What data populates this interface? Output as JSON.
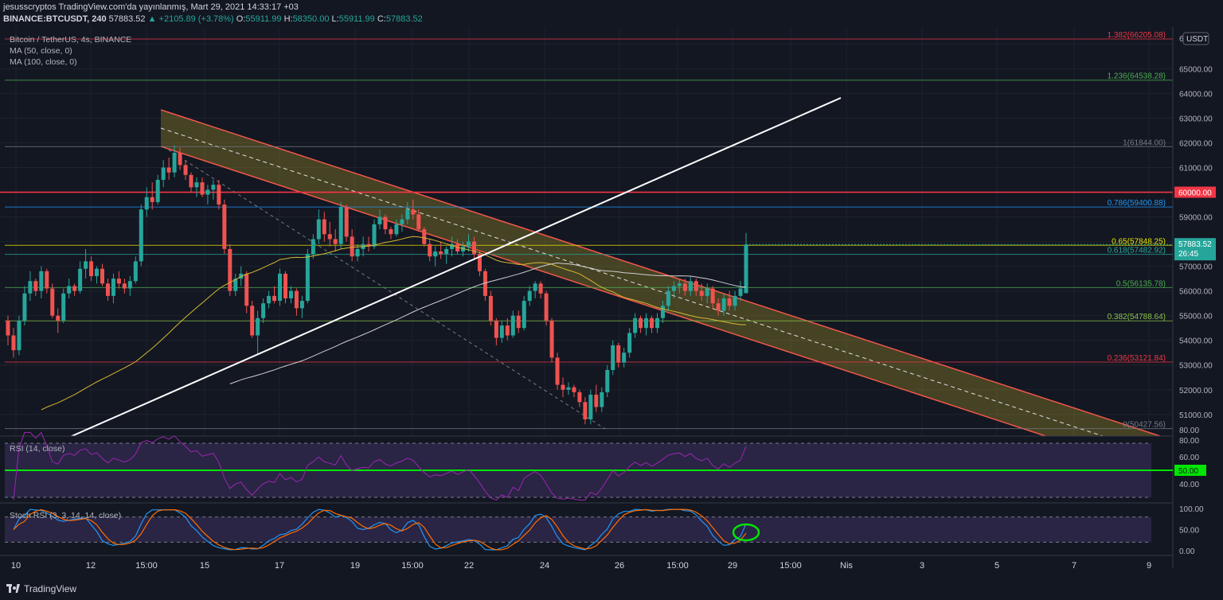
{
  "header": {
    "line1": "jesusscryptos TradingView.com'da yayınlanmış, Mart 29, 2021 14:33:17 +03",
    "symbol": "BINANCE:BTCUSDT, 240",
    "last": "57883.52",
    "change": "▲ +2105.89 (+3.78%)",
    "o_label": "O:",
    "o_val": "55911.99",
    "h_label": "H:",
    "h_val": "58350.00",
    "l_label": "L:",
    "l_val": "55911.99",
    "c_label": "C:",
    "c_val": "57883.52"
  },
  "legend": {
    "title": "Bitcoin / TetherUS, 4s, BINANCE",
    "ma50": "MA (50, close, 0)",
    "ma100": "MA (100, close, 0)",
    "rsi": "RSI (14, close)",
    "stoch": "Stoch RSI (3, 3, 14, 14, close)"
  },
  "footer": {
    "brand": "TradingView"
  },
  "chart_data": {
    "type": "candlestick",
    "currency_label": "USDT",
    "price_axis_ticks": [
      "51000.00",
      "52000.00",
      "53000.00",
      "54000.00",
      "55000.00",
      "56000.00",
      "57000.00",
      "58000.00",
      "59000.00",
      "60000.00",
      "61000.00",
      "62000.00",
      "63000.00",
      "64000.00",
      "65000.00",
      "6"
    ],
    "time_axis_ticks": [
      "10",
      "12",
      "15:00",
      "15",
      "17",
      "19",
      "15:00",
      "22",
      "24",
      "26",
      "15:00",
      "29",
      "15:00",
      "Nis",
      "3",
      "5",
      "7",
      "9"
    ],
    "last_price_tag": "57883.52",
    "countdown": "26:45",
    "fib_levels": [
      {
        "label": "1.382(66205.08)",
        "price": 66205.08,
        "color": "#f23645"
      },
      {
        "label": "1.236(64538.28)",
        "price": 64538.28,
        "color": "#4caf50"
      },
      {
        "label": "1(61844.00)",
        "price": 61844.0,
        "color": "#787b86"
      },
      {
        "label": "0.786(59400.88)",
        "price": 59400.88,
        "color": "#2196f3"
      },
      {
        "label": "0.65(57848.25)",
        "price": 57848.25,
        "color": "#e6e600"
      },
      {
        "label": "0.618(57482.92)",
        "price": 57482.92,
        "color": "#26a69a"
      },
      {
        "label": "0.5(56135.78)",
        "price": 56135.78,
        "color": "#4caf50"
      },
      {
        "label": "0.382(54788.64)",
        "price": 54788.64,
        "color": "#8bc34a"
      },
      {
        "label": "0.236(53121.84)",
        "price": 53121.84,
        "color": "#f23645"
      },
      {
        "label": "0(50427.56)",
        "price": 50427.56,
        "color": "#787b86"
      }
    ],
    "horizontal_level": {
      "label": "60000.00",
      "price": 60000
    },
    "candles": [
      [
        54800,
        55000,
        53800,
        54200
      ],
      [
        54200,
        54500,
        53300,
        53600
      ],
      [
        53600,
        55000,
        53400,
        54800
      ],
      [
        54800,
        56200,
        54600,
        55900
      ],
      [
        55900,
        56800,
        55600,
        56400
      ],
      [
        56400,
        56500,
        55800,
        56000
      ],
      [
        56000,
        57000,
        55700,
        56800
      ],
      [
        56800,
        56900,
        55900,
        56100
      ],
      [
        56100,
        56300,
        54900,
        55000
      ],
      [
        55000,
        55300,
        54300,
        54800
      ],
      [
        54800,
        56100,
        54700,
        55900
      ],
      [
        55900,
        56500,
        55700,
        56200
      ],
      [
        56200,
        56300,
        55800,
        56000
      ],
      [
        56000,
        57200,
        55900,
        56900
      ],
      [
        56900,
        57700,
        56500,
        57200
      ],
      [
        57200,
        57400,
        56400,
        56600
      ],
      [
        56600,
        57000,
        56300,
        56900
      ],
      [
        56900,
        57100,
        56200,
        56300
      ],
      [
        56300,
        56500,
        55600,
        55800
      ],
      [
        55800,
        56700,
        55500,
        56500
      ],
      [
        56500,
        56800,
        56100,
        56300
      ],
      [
        56300,
        56500,
        55900,
        56100
      ],
      [
        56100,
        56600,
        55800,
        56400
      ],
      [
        56400,
        57400,
        56300,
        57200
      ],
      [
        57200,
        59500,
        57000,
        59300
      ],
      [
        59300,
        60200,
        59000,
        59800
      ],
      [
        59800,
        60400,
        59300,
        59600
      ],
      [
        59600,
        60700,
        59500,
        60500
      ],
      [
        60500,
        61300,
        60200,
        61000
      ],
      [
        61000,
        61400,
        60500,
        60800
      ],
      [
        60800,
        61900,
        60600,
        61600
      ],
      [
        61600,
        61800,
        60900,
        61100
      ],
      [
        61100,
        61300,
        60500,
        60700
      ],
      [
        60700,
        60800,
        60000,
        60200
      ],
      [
        60200,
        60600,
        59800,
        60400
      ],
      [
        60400,
        60600,
        59800,
        59900
      ],
      [
        59900,
        60300,
        59500,
        60100
      ],
      [
        60100,
        60500,
        59700,
        60300
      ],
      [
        60300,
        60500,
        59300,
        59500
      ],
      [
        59500,
        59700,
        57500,
        57700
      ],
      [
        57700,
        57900,
        55800,
        56000
      ],
      [
        56000,
        56700,
        55800,
        56500
      ],
      [
        56500,
        57000,
        56200,
        56700
      ],
      [
        56700,
        56800,
        55100,
        55400
      ],
      [
        55400,
        55600,
        54100,
        54200
      ],
      [
        54200,
        55200,
        53400,
        54900
      ],
      [
        54900,
        55700,
        54700,
        55500
      ],
      [
        55500,
        56000,
        55300,
        55800
      ],
      [
        55800,
        56200,
        55500,
        55600
      ],
      [
        55600,
        56900,
        55400,
        56700
      ],
      [
        56700,
        56800,
        55500,
        55700
      ],
      [
        55700,
        56200,
        55500,
        56000
      ],
      [
        56000,
        56100,
        55000,
        55300
      ],
      [
        55300,
        55800,
        54900,
        55600
      ],
      [
        55600,
        57700,
        55500,
        57500
      ],
      [
        57500,
        58300,
        57300,
        58100
      ],
      [
        58100,
        59300,
        57900,
        58900
      ],
      [
        58900,
        59200,
        58000,
        58300
      ],
      [
        58300,
        58800,
        57800,
        58100
      ],
      [
        58100,
        58500,
        57600,
        57900
      ],
      [
        57900,
        59600,
        57700,
        59400
      ],
      [
        59400,
        59500,
        58000,
        58200
      ],
      [
        58200,
        58500,
        57200,
        57400
      ],
      [
        57400,
        57900,
        57200,
        57700
      ],
      [
        57700,
        58200,
        57400,
        57900
      ],
      [
        57900,
        58200,
        57600,
        57800
      ],
      [
        57800,
        58900,
        57700,
        58700
      ],
      [
        58700,
        59300,
        58500,
        59000
      ],
      [
        59000,
        59100,
        58300,
        58500
      ],
      [
        58500,
        58600,
        58100,
        58300
      ],
      [
        58300,
        58900,
        58200,
        58700
      ],
      [
        58700,
        59100,
        58400,
        58900
      ],
      [
        58900,
        59600,
        58700,
        59300
      ],
      [
        59300,
        59700,
        58900,
        59100
      ],
      [
        59100,
        59300,
        58400,
        58500
      ],
      [
        58500,
        58600,
        57800,
        57900
      ],
      [
        57900,
        58100,
        57200,
        57400
      ],
      [
        57400,
        57800,
        57000,
        57600
      ],
      [
        57600,
        58000,
        57300,
        57500
      ],
      [
        57500,
        57800,
        57100,
        57700
      ],
      [
        57700,
        58200,
        57400,
        57900
      ],
      [
        57900,
        58100,
        57500,
        57600
      ],
      [
        57600,
        58000,
        57400,
        57800
      ],
      [
        57800,
        58300,
        57600,
        58000
      ],
      [
        58000,
        58200,
        57300,
        57500
      ],
      [
        57500,
        57600,
        56600,
        56800
      ],
      [
        56800,
        56900,
        55600,
        55800
      ],
      [
        55800,
        56000,
        54600,
        54800
      ],
      [
        54800,
        54900,
        53800,
        54100
      ],
      [
        54100,
        54800,
        53900,
        54600
      ],
      [
        54600,
        54900,
        54000,
        54200
      ],
      [
        54200,
        55200,
        54100,
        55000
      ],
      [
        55000,
        55200,
        54300,
        54500
      ],
      [
        54500,
        55800,
        54400,
        55600
      ],
      [
        55600,
        56200,
        55400,
        56000
      ],
      [
        56000,
        56400,
        55700,
        56300
      ],
      [
        56300,
        56400,
        55700,
        55900
      ],
      [
        55900,
        56000,
        54600,
        54800
      ],
      [
        54800,
        54900,
        53100,
        53300
      ],
      [
        53300,
        53500,
        52000,
        52200
      ],
      [
        52200,
        52500,
        51700,
        52000
      ],
      [
        52000,
        52300,
        51800,
        52100
      ],
      [
        52100,
        52200,
        51700,
        51900
      ],
      [
        51900,
        52000,
        51300,
        51500
      ],
      [
        51500,
        51700,
        50600,
        50800
      ],
      [
        50800,
        52000,
        50600,
        51800
      ],
      [
        51800,
        52200,
        51100,
        51300
      ],
      [
        51300,
        52100,
        51100,
        51900
      ],
      [
        51900,
        53000,
        51700,
        52800
      ],
      [
        52800,
        54000,
        52600,
        53800
      ],
      [
        53800,
        53900,
        52900,
        53100
      ],
      [
        53100,
        53700,
        52900,
        53500
      ],
      [
        53500,
        54500,
        53300,
        54300
      ],
      [
        54300,
        55100,
        54100,
        54900
      ],
      [
        54900,
        55000,
        54300,
        54500
      ],
      [
        54500,
        55100,
        54200,
        54900
      ],
      [
        54900,
        55000,
        54300,
        54500
      ],
      [
        54500,
        55100,
        54300,
        54900
      ],
      [
        54900,
        55600,
        54700,
        55400
      ],
      [
        55400,
        56200,
        55200,
        56000
      ],
      [
        56000,
        56400,
        55700,
        56200
      ],
      [
        56200,
        56500,
        55900,
        56300
      ],
      [
        56300,
        56500,
        55800,
        56000
      ],
      [
        56000,
        56600,
        55800,
        56400
      ],
      [
        56400,
        56500,
        55800,
        56000
      ],
      [
        56000,
        56300,
        55600,
        55800
      ],
      [
        55800,
        56300,
        55500,
        56100
      ],
      [
        56100,
        56200,
        55300,
        55500
      ],
      [
        55500,
        55700,
        55000,
        55200
      ],
      [
        55200,
        55900,
        55000,
        55700
      ],
      [
        55700,
        56000,
        55200,
        55400
      ],
      [
        55400,
        56000,
        55200,
        55800
      ],
      [
        55800,
        56400,
        55600,
        56100
      ],
      [
        55912,
        58350,
        55912,
        57883.52
      ]
    ]
  }
}
